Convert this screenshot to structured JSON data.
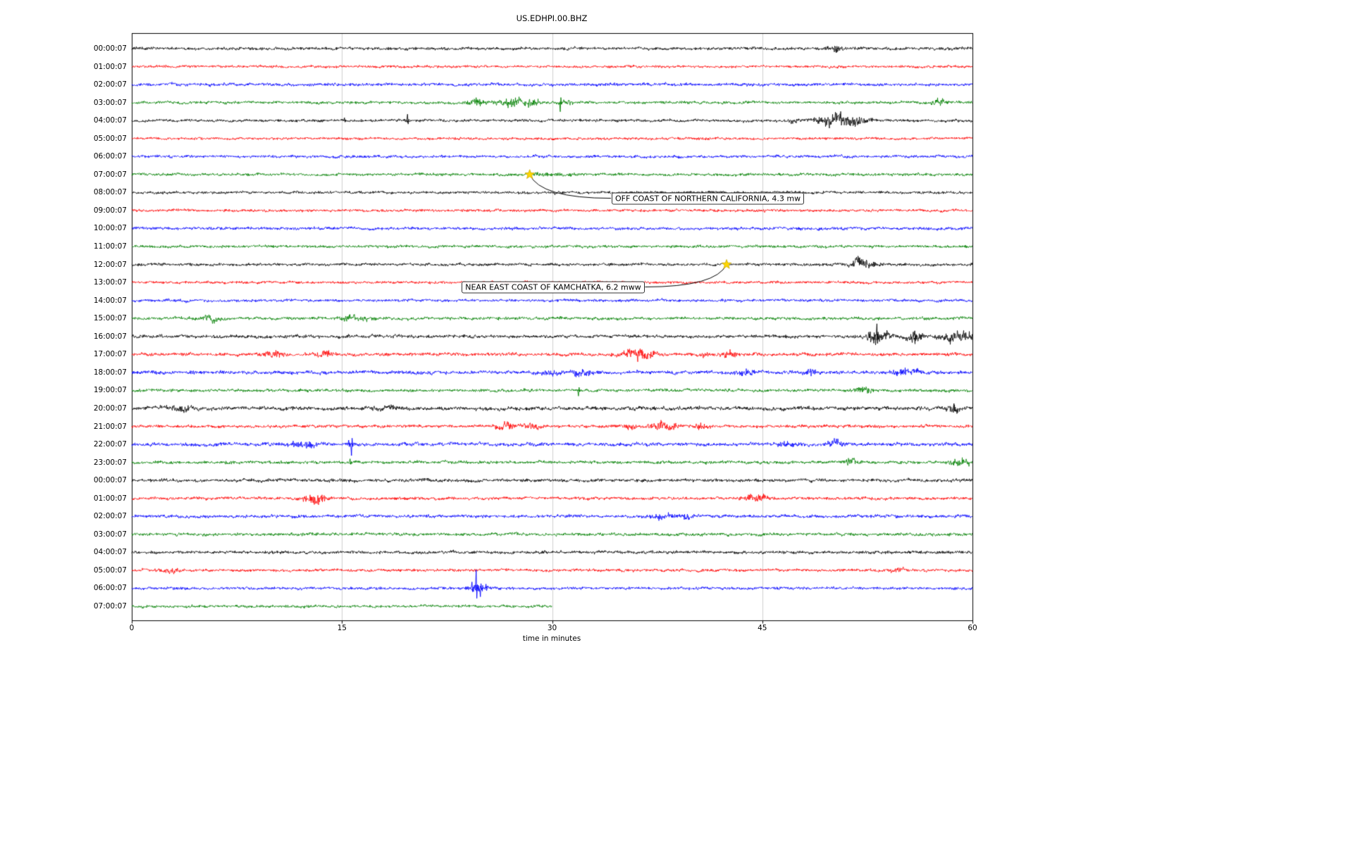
{
  "chart_data": {
    "type": "line",
    "variant": "seismogram-dayplot",
    "title": "US.EDHPI.00.BHZ",
    "xlabel": "time in minutes",
    "x_range": [
      0,
      60
    ],
    "x_ticks": [
      "0",
      "15",
      "30",
      "45",
      "60"
    ],
    "grid": true,
    "grid_color": "#cfcfcf",
    "frame_color": "#000000",
    "star_color": "#ffd700",
    "star_edge_color": "#c8a800",
    "colors_cycle": [
      "#000000",
      "#ff0000",
      "#0000ff",
      "#008000"
    ],
    "rows": [
      {
        "label": "00:00:07",
        "color": "#000000",
        "amp": 2.6,
        "end": 60,
        "bursts": [
          [
            50.2,
            0.5,
            1.4
          ]
        ],
        "spikes": [
          [
            50.3,
            -6
          ]
        ]
      },
      {
        "label": "01:00:07",
        "color": "#ff0000",
        "amp": 2.2,
        "end": 60,
        "bursts": [],
        "spikes": []
      },
      {
        "label": "02:00:07",
        "color": "#0000ff",
        "amp": 2.5,
        "end": 60,
        "bursts": [],
        "spikes": []
      },
      {
        "label": "03:00:07",
        "color": "#008000",
        "amp": 2.4,
        "end": 60,
        "bursts": [
          [
            24.6,
            0.4,
            2.2
          ],
          [
            27.4,
            0.8,
            2.6
          ],
          [
            28.7,
            0.4,
            1.8
          ],
          [
            31.0,
            0.3,
            1.2
          ],
          [
            57.6,
            0.35,
            2.4
          ]
        ],
        "spikes": [
          [
            30.6,
            -13
          ],
          [
            24.6,
            7
          ]
        ]
      },
      {
        "label": "04:00:07",
        "color": "#000000",
        "amp": 2.4,
        "end": 60,
        "bursts": [
          [
            47.2,
            0.3,
            1.2
          ],
          [
            49.4,
            0.5,
            2.0
          ],
          [
            50.9,
            1.0,
            4.2
          ]
        ],
        "spikes": [
          [
            19.7,
            9
          ],
          [
            15.2,
            4
          ]
        ]
      },
      {
        "label": "05:00:07",
        "color": "#ff0000",
        "amp": 2.2,
        "end": 60,
        "bursts": [],
        "spikes": []
      },
      {
        "label": "06:00:07",
        "color": "#0000ff",
        "amp": 2.4,
        "end": 60,
        "bursts": [],
        "spikes": []
      },
      {
        "label": "07:00:07",
        "color": "#008000",
        "amp": 2.4,
        "end": 60,
        "bursts": [
          [
            29.8,
            1.2,
            0.7
          ]
        ],
        "spikes": []
      },
      {
        "label": "08:00:07",
        "color": "#000000",
        "amp": 2.3,
        "end": 60,
        "bursts": [],
        "spikes": []
      },
      {
        "label": "09:00:07",
        "color": "#ff0000",
        "amp": 2.3,
        "end": 60,
        "bursts": [],
        "spikes": []
      },
      {
        "label": "10:00:07",
        "color": "#0000ff",
        "amp": 2.5,
        "end": 60,
        "bursts": [],
        "spikes": []
      },
      {
        "label": "11:00:07",
        "color": "#008000",
        "amp": 2.4,
        "end": 60,
        "bursts": [],
        "spikes": []
      },
      {
        "label": "12:00:07",
        "color": "#000000",
        "amp": 2.4,
        "end": 60,
        "bursts": [
          [
            52.1,
            0.6,
            3.2
          ]
        ],
        "spikes": []
      },
      {
        "label": "13:00:07",
        "color": "#ff0000",
        "amp": 2.3,
        "end": 60,
        "bursts": [],
        "spikes": []
      },
      {
        "label": "14:00:07",
        "color": "#0000ff",
        "amp": 2.4,
        "end": 60,
        "bursts": [],
        "spikes": []
      },
      {
        "label": "15:00:07",
        "color": "#008000",
        "amp": 2.6,
        "end": 60,
        "bursts": [
          [
            5.6,
            0.6,
            1.4
          ],
          [
            16.0,
            0.8,
            1.5
          ]
        ],
        "spikes": []
      },
      {
        "label": "16:00:07",
        "color": "#000000",
        "amp": 2.8,
        "end": 60,
        "bursts": [
          [
            53.2,
            0.5,
            5.0
          ],
          [
            55.9,
            0.4,
            2.8
          ],
          [
            58.6,
            0.6,
            3.0
          ],
          [
            59.6,
            0.3,
            2.4
          ]
        ],
        "spikes": [
          [
            53.2,
            18
          ],
          [
            55.9,
            8
          ]
        ]
      },
      {
        "label": "17:00:07",
        "color": "#ff0000",
        "amp": 2.8,
        "end": 60,
        "bursts": [
          [
            10.2,
            0.5,
            1.7
          ],
          [
            13.8,
            0.4,
            1.9
          ],
          [
            35.9,
            0.7,
            2.6
          ],
          [
            36.8,
            0.4,
            1.9
          ],
          [
            40.8,
            0.3,
            1.3
          ],
          [
            42.6,
            0.4,
            1.5
          ]
        ],
        "spikes": []
      },
      {
        "label": "18:00:07",
        "color": "#0000ff",
        "amp": 3.0,
        "end": 60,
        "bursts": [
          [
            29.8,
            0.4,
            1.4
          ],
          [
            32.1,
            0.5,
            2.0
          ],
          [
            44.0,
            0.5,
            1.2
          ],
          [
            48.5,
            0.4,
            1.3
          ],
          [
            55.2,
            0.6,
            1.6
          ]
        ],
        "spikes": []
      },
      {
        "label": "19:00:07",
        "color": "#008000",
        "amp": 2.6,
        "end": 60,
        "bursts": [
          [
            52.3,
            0.5,
            1.6
          ]
        ],
        "spikes": [
          [
            31.9,
            -8
          ]
        ]
      },
      {
        "label": "20:00:07",
        "color": "#000000",
        "amp": 3.2,
        "end": 60,
        "bursts": [
          [
            3.6,
            0.8,
            1.2
          ],
          [
            18.0,
            0.6,
            1.1
          ],
          [
            58.7,
            0.3,
            1.8
          ]
        ],
        "spikes": [
          [
            58.7,
            7
          ]
        ]
      },
      {
        "label": "21:00:07",
        "color": "#ff0000",
        "amp": 2.6,
        "end": 60,
        "bursts": [
          [
            26.6,
            0.5,
            2.0
          ],
          [
            28.5,
            0.4,
            1.8
          ],
          [
            35.4,
            0.4,
            1.8
          ],
          [
            37.9,
            0.7,
            2.4
          ],
          [
            40.7,
            0.4,
            1.8
          ]
        ],
        "spikes": []
      },
      {
        "label": "22:00:07",
        "color": "#0000ff",
        "amp": 3.0,
        "end": 60,
        "bursts": [
          [
            12.4,
            0.7,
            1.5
          ],
          [
            46.6,
            0.5,
            1.4
          ],
          [
            50.2,
            0.4,
            1.4
          ]
        ],
        "spikes": [
          [
            15.7,
            -16
          ],
          [
            15.5,
            6
          ]
        ]
      },
      {
        "label": "23:00:07",
        "color": "#008000",
        "amp": 2.6,
        "end": 60,
        "bursts": [
          [
            51.3,
            0.4,
            1.7
          ],
          [
            59.2,
            0.5,
            2.0
          ]
        ],
        "spikes": [
          [
            15.6,
            5
          ]
        ]
      },
      {
        "label": "00:00:07",
        "color": "#000000",
        "amp": 2.8,
        "end": 60,
        "bursts": [],
        "spikes": []
      },
      {
        "label": "01:00:07",
        "color": "#ff0000",
        "amp": 2.5,
        "end": 60,
        "bursts": [
          [
            12.8,
            0.5,
            2.4
          ],
          [
            13.6,
            0.3,
            2.0
          ],
          [
            44.5,
            0.5,
            2.6
          ]
        ],
        "spikes": []
      },
      {
        "label": "02:00:07",
        "color": "#0000ff",
        "amp": 2.7,
        "end": 60,
        "bursts": [
          [
            37.9,
            0.5,
            1.7
          ],
          [
            39.6,
            0.3,
            1.3
          ]
        ],
        "spikes": []
      },
      {
        "label": "03:00:07",
        "color": "#008000",
        "amp": 2.6,
        "end": 60,
        "bursts": [],
        "spikes": []
      },
      {
        "label": "04:00:07",
        "color": "#000000",
        "amp": 2.6,
        "end": 60,
        "bursts": [],
        "spikes": []
      },
      {
        "label": "05:00:07",
        "color": "#ff0000",
        "amp": 2.4,
        "end": 60,
        "bursts": [
          [
            2.8,
            0.6,
            1.3
          ],
          [
            54.6,
            0.4,
            1.4
          ]
        ],
        "spikes": []
      },
      {
        "label": "06:00:07",
        "color": "#0000ff",
        "amp": 2.4,
        "end": 60,
        "bursts": [
          [
            24.6,
            0.5,
            1.8
          ]
        ],
        "spikes": [
          [
            24.3,
            9
          ],
          [
            24.6,
            26
          ],
          [
            24.9,
            -12
          ],
          [
            25.3,
            6
          ]
        ]
      },
      {
        "label": "07:00:07",
        "color": "#008000",
        "amp": 2.4,
        "end": 30,
        "bursts": [],
        "spikes": []
      }
    ],
    "annotations": [
      {
        "text": "OFF COAST OF NORTHERN CALIFORNIA, 4.3 mw",
        "star": {
          "row": 7,
          "minute": 28.4
        },
        "box": {
          "row": 8.32,
          "minute": 34.25,
          "connect_side": "left"
        }
      },
      {
        "text": "NEAR EAST COAST OF KAMCHATKA, 6.2 mww",
        "star": {
          "row": 12,
          "minute": 42.45
        },
        "box": {
          "row": 13.25,
          "minute": 23.55,
          "connect_side": "right"
        }
      }
    ]
  }
}
